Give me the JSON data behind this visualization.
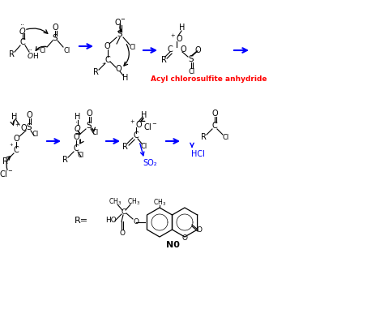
{
  "background_color": "#ffffff",
  "figure_width": 4.74,
  "figure_height": 3.92,
  "dpi": 100,
  "red_label": "Acyl chlorosulfite anhydride",
  "blue_so2": "SO₂",
  "blue_hcl": "HCl",
  "label_r": "R=",
  "label_n0": "N0"
}
